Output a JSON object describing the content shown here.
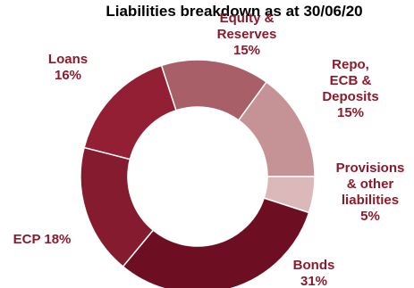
{
  "chart_data": {
    "type": "pie",
    "variant": "donut",
    "title": "Liabilities breakdown as at 30/06/20",
    "series": [
      {
        "name": "Equity & Reserves",
        "label_lines": [
          "Equity &",
          "Reserves",
          "15%"
        ],
        "value": 15,
        "color": "#a85f68"
      },
      {
        "name": "Repo, ECB & Deposits",
        "label_lines": [
          "Repo,",
          "ECB &",
          "Deposits",
          "15%"
        ],
        "value": 15,
        "color": "#c59396"
      },
      {
        "name": "Provisions & other liabilities",
        "label_lines": [
          "Provisions",
          "& other",
          "liabilities",
          "5%"
        ],
        "value": 5,
        "color": "#dbb9bb"
      },
      {
        "name": "Bonds",
        "label_lines": [
          "Bonds",
          "31%"
        ],
        "value": 31,
        "color": "#6e0e22"
      },
      {
        "name": "ECP",
        "label_lines": [
          "ECP 18%"
        ],
        "value": 18,
        "color": "#841b2f"
      },
      {
        "name": "Loans",
        "label_lines": [
          "Loans",
          "16%"
        ],
        "value": 16,
        "color": "#931f35"
      }
    ],
    "start_angle_deg": -18,
    "legend": "none"
  }
}
